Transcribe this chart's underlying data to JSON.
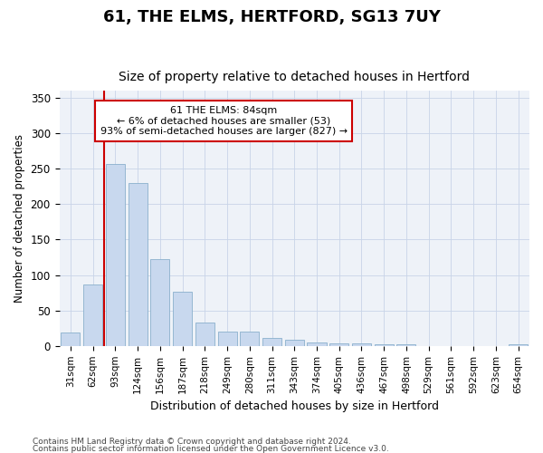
{
  "title": "61, THE ELMS, HERTFORD, SG13 7UY",
  "subtitle": "Size of property relative to detached houses in Hertford",
  "xlabel": "Distribution of detached houses by size in Hertford",
  "ylabel": "Number of detached properties",
  "categories": [
    "31sqm",
    "62sqm",
    "93sqm",
    "124sqm",
    "156sqm",
    "187sqm",
    "218sqm",
    "249sqm",
    "280sqm",
    "311sqm",
    "343sqm",
    "374sqm",
    "405sqm",
    "436sqm",
    "467sqm",
    "498sqm",
    "529sqm",
    "561sqm",
    "592sqm",
    "623sqm",
    "654sqm"
  ],
  "values": [
    19,
    87,
    257,
    230,
    122,
    76,
    33,
    20,
    20,
    11,
    9,
    5,
    4,
    4,
    2,
    2,
    0,
    0,
    0,
    0,
    2
  ],
  "bar_color": "#c8d8ee",
  "bar_edge_color": "#8ab0cc",
  "annotation_title": "61 THE ELMS: 84sqm",
  "annotation_line1": "← 6% of detached houses are smaller (53)",
  "annotation_line2": "93% of semi-detached houses are larger (827) →",
  "vline_color": "#cc0000",
  "annotation_box_edge": "#cc0000",
  "grid_color": "#c8d4e8",
  "background_color": "#eef2f8",
  "footer_line1": "Contains HM Land Registry data © Crown copyright and database right 2024.",
  "footer_line2": "Contains public sector information licensed under the Open Government Licence v3.0.",
  "ylim": [
    0,
    360
  ],
  "yticks": [
    0,
    50,
    100,
    150,
    200,
    250,
    300,
    350
  ]
}
